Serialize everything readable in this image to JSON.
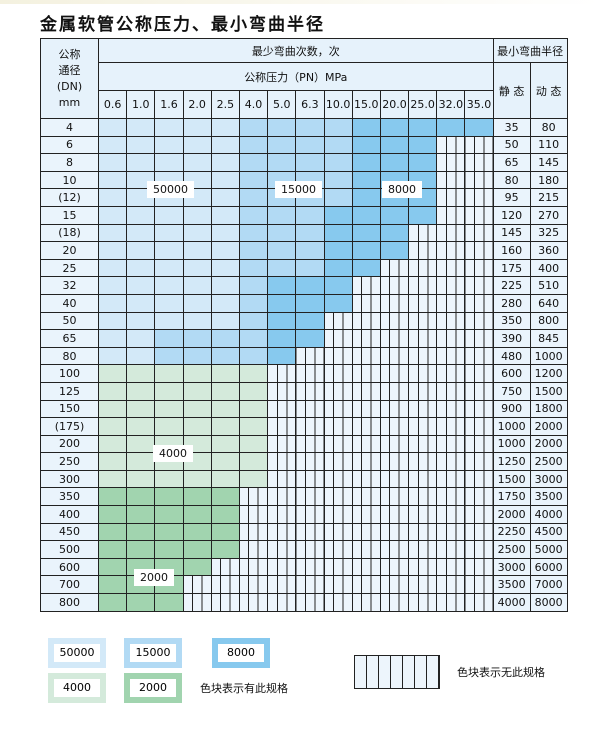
{
  "title": "金属软管公称压力、最小弯曲半径",
  "header": {
    "dn_label": [
      "公称",
      "通径",
      "(DN)",
      "mm"
    ],
    "bend_count": "最少弯曲次数，次",
    "pressure": "公称压力（PN）MPa",
    "min_radius": "最小弯曲半径",
    "static": "静 态",
    "dynamic": "动 态",
    "pressures": [
      "0.6",
      "1.0",
      "1.6",
      "2.0",
      "2.5",
      "4.0",
      "5.0",
      "6.3",
      "10.0",
      "15.0",
      "20.0",
      "25.0",
      "32.0",
      "35.0"
    ]
  },
  "colors": {
    "L": "#d3e9f8",
    "M": "#b2daf4",
    "D": "#87c9ee",
    "G1": "#d4eadb",
    "G2": "#a1d4af"
  },
  "rows": [
    {
      "dn": "4",
      "s": "35",
      "d": "80",
      "cells": "LLLLLMMMMDDDDD"
    },
    {
      "dn": "6",
      "s": "50",
      "d": "110",
      "cells": "LLLLLMMMMDDDXX"
    },
    {
      "dn": "8",
      "s": "65",
      "d": "145",
      "cells": "LLLLLMMMMDDDXX"
    },
    {
      "dn": "10",
      "s": "80",
      "d": "180",
      "cells": "LLLLLMMMMDDDXX"
    },
    {
      "dn": "(12)",
      "s": "95",
      "d": "215",
      "cells": "LLLLLMMMMDDDXX"
    },
    {
      "dn": "15",
      "s": "120",
      "d": "270",
      "cells": "LLLLLMMMDDDDXX"
    },
    {
      "dn": "(18)",
      "s": "145",
      "d": "325",
      "cells": "LLLLLMMMDDDXXX"
    },
    {
      "dn": "20",
      "s": "160",
      "d": "360",
      "cells": "LLLLLMMMDDDXXX"
    },
    {
      "dn": "25",
      "s": "175",
      "d": "400",
      "cells": "LLLLLMMMDDXXXX"
    },
    {
      "dn": "32",
      "s": "225",
      "d": "510",
      "cells": "LLLLLMDDDXXXXX"
    },
    {
      "dn": "40",
      "s": "280",
      "d": "640",
      "cells": "LLLLLMDDDXXXXX"
    },
    {
      "dn": "50",
      "s": "350",
      "d": "800",
      "cells": "LLLLLMDDXXXXXX"
    },
    {
      "dn": "65",
      "s": "390",
      "d": "845",
      "cells": "LLMMMMDDXXXXXX"
    },
    {
      "dn": "80",
      "s": "480",
      "d": "1000",
      "cells": "LLMMMMDXXXXXXX"
    },
    {
      "dn": "100",
      "s": "600",
      "d": "1200",
      "cells": "GGGGGGXXXXXXXX"
    },
    {
      "dn": "125",
      "s": "750",
      "d": "1500",
      "cells": "GGGGGGXXXXXXXX"
    },
    {
      "dn": "150",
      "s": "900",
      "d": "1800",
      "cells": "GGGGGGXXXXXXXX"
    },
    {
      "dn": "(175)",
      "s": "1000",
      "d": "2000",
      "cells": "GGGGGGXXXXXXXX"
    },
    {
      "dn": "200",
      "s": "1000",
      "d": "2000",
      "cells": "GGGGGGXXXXXXXX"
    },
    {
      "dn": "250",
      "s": "1250",
      "d": "2500",
      "cells": "GGGGGGXXXXXXXX"
    },
    {
      "dn": "300",
      "s": "1500",
      "d": "3000",
      "cells": "GGGGGGXXXXXXXX"
    },
    {
      "dn": "350",
      "s": "1750",
      "d": "3500",
      "cells": "HHHHHXXXXXXXXX"
    },
    {
      "dn": "400",
      "s": "2000",
      "d": "4000",
      "cells": "HHHHHXXXXXXXXX"
    },
    {
      "dn": "450",
      "s": "2250",
      "d": "4500",
      "cells": "HHHHHXXXXXXXXX"
    },
    {
      "dn": "500",
      "s": "2500",
      "d": "5000",
      "cells": "HHHHHXXXXXXXXX"
    },
    {
      "dn": "600",
      "s": "3000",
      "d": "6000",
      "cells": "HHHHXXXXXXXXXX"
    },
    {
      "dn": "700",
      "s": "3500",
      "d": "7000",
      "cells": "HHHXXXXXXXXXXX"
    },
    {
      "dn": "800",
      "s": "4000",
      "d": "8000",
      "cells": "HHHXXXXXXXXXXX"
    }
  ],
  "region_labels": {
    "l50000": "50000",
    "l15000": "15000",
    "l8000": "8000",
    "l4000": "4000",
    "l2000": "2000"
  },
  "legend": {
    "items": [
      "50000",
      "15000",
      "8000",
      "4000",
      "2000"
    ],
    "has_spec": "色块表示有此规格",
    "no_spec": "色块表示无此规格"
  }
}
